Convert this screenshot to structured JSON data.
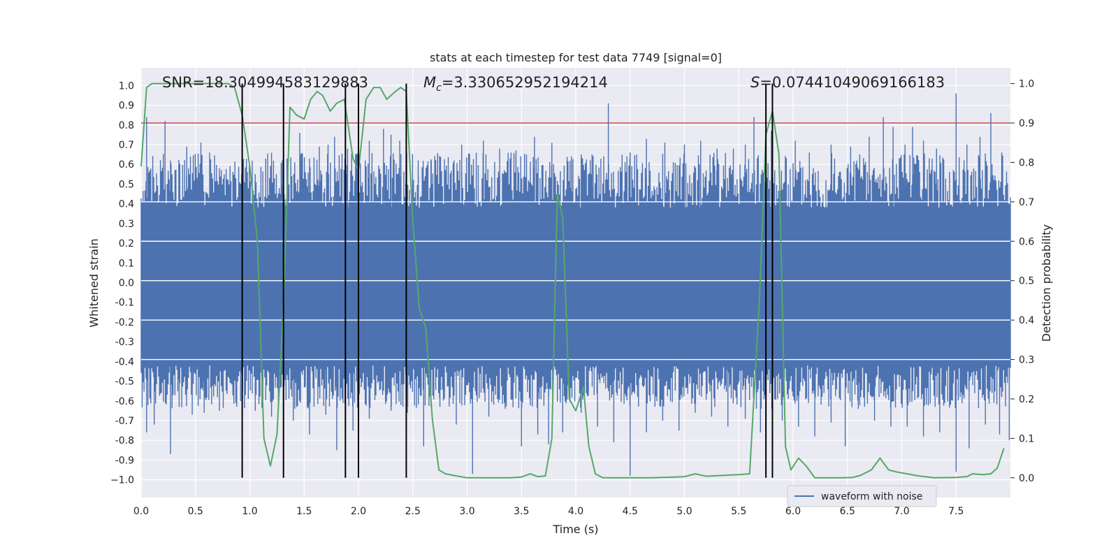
{
  "chart_data": {
    "type": "line",
    "title": "stats at each timestep for test data 7749 [signal=0]",
    "xlabel": "Time (s)",
    "ylabel": "Whitened strain",
    "y2label": "Detection probability",
    "xlim": [
      0.0,
      8.0
    ],
    "ylim": [
      -1.09,
      1.09
    ],
    "y2lim": [
      -0.05,
      1.04
    ],
    "xticks": [
      "0.0",
      "0.5",
      "1.0",
      "1.5",
      "2.0",
      "2.5",
      "3.0",
      "3.5",
      "4.0",
      "4.5",
      "5.0",
      "5.5",
      "6.0",
      "6.5",
      "7.0",
      "7.5"
    ],
    "yticks": [
      "1.0",
      "0.9",
      "0.8",
      "0.7",
      "0.6",
      "0.5",
      "0.4",
      "0.3",
      "0.2",
      "0.1",
      "0.0",
      "-0.1",
      "-0.2",
      "-0.3",
      "-0.4",
      "-0.5",
      "-0.6",
      "-0.7",
      "-0.8",
      "-0.9",
      "−1.0"
    ],
    "y2ticks": [
      "1.0",
      "0.9",
      "0.8",
      "0.7",
      "0.6",
      "0.5",
      "0.4",
      "0.3",
      "0.2",
      "0.1",
      "0.0"
    ],
    "annotations": {
      "snr": "SNR=18.304994583129883",
      "mc_symbol": "M",
      "mc_sub": "c",
      "mc_value": "=3.330652952194214",
      "s_symbol": "S",
      "s_value": "=0.07441049069166183"
    },
    "threshold": 0.9,
    "threshold_color": "#c44e52",
    "vertical_lines": [
      0.93,
      1.31,
      1.88,
      2.0,
      2.44,
      5.75,
      5.81
    ],
    "series": [
      {
        "name": "waveform with noise",
        "color": "#4c72b0",
        "axis": "left",
        "band": [
          -0.42,
          0.38
        ],
        "spikes_up": [
          [
            0.05,
            0.84
          ],
          [
            0.22,
            0.82
          ],
          [
            0.27,
            0.62
          ],
          [
            0.42,
            0.69
          ],
          [
            0.55,
            0.71
          ],
          [
            0.63,
            0.66
          ],
          [
            0.8,
            0.52
          ],
          [
            1.05,
            0.55
          ],
          [
            1.3,
            0.62
          ],
          [
            1.46,
            0.76
          ],
          [
            1.55,
            0.63
          ],
          [
            1.64,
            0.69
          ],
          [
            1.72,
            0.7
          ],
          [
            1.78,
            0.74
          ],
          [
            1.9,
            0.68
          ],
          [
            2.1,
            0.72
          ],
          [
            2.23,
            0.78
          ],
          [
            2.3,
            0.75
          ],
          [
            2.38,
            0.72
          ],
          [
            2.55,
            0.62
          ],
          [
            2.67,
            0.62
          ],
          [
            2.8,
            0.57
          ],
          [
            2.95,
            0.7
          ],
          [
            3.15,
            0.72
          ],
          [
            3.3,
            0.68
          ],
          [
            3.45,
            0.67
          ],
          [
            3.62,
            0.74
          ],
          [
            3.78,
            0.71
          ],
          [
            3.96,
            0.64
          ],
          [
            4.05,
            0.65
          ],
          [
            4.15,
            0.65
          ],
          [
            4.3,
            0.91
          ],
          [
            4.5,
            0.66
          ],
          [
            4.65,
            0.73
          ],
          [
            4.82,
            0.71
          ],
          [
            5.0,
            0.7
          ],
          [
            5.15,
            0.72
          ],
          [
            5.3,
            0.68
          ],
          [
            5.45,
            0.68
          ],
          [
            5.56,
            0.7
          ],
          [
            5.64,
            0.84
          ],
          [
            5.8,
            0.77
          ],
          [
            6.02,
            0.72
          ],
          [
            6.15,
            0.66
          ],
          [
            6.35,
            0.7
          ],
          [
            6.53,
            0.69
          ],
          [
            6.7,
            0.74
          ],
          [
            6.83,
            0.84
          ],
          [
            6.92,
            0.79
          ],
          [
            7.03,
            0.7
          ],
          [
            7.1,
            0.79
          ],
          [
            7.2,
            0.72
          ],
          [
            7.32,
            0.68
          ],
          [
            7.5,
            0.96
          ],
          [
            7.6,
            0.7
          ],
          [
            7.72,
            0.74
          ],
          [
            7.82,
            0.86
          ],
          [
            7.92,
            0.66
          ]
        ],
        "spikes_down": [
          [
            0.05,
            -0.76
          ],
          [
            0.12,
            -0.72
          ],
          [
            0.27,
            -0.87
          ],
          [
            0.35,
            -0.63
          ],
          [
            0.47,
            -0.67
          ],
          [
            0.58,
            -0.66
          ],
          [
            0.72,
            -0.65
          ],
          [
            0.88,
            -0.63
          ],
          [
            1.05,
            -0.65
          ],
          [
            1.2,
            -0.68
          ],
          [
            1.4,
            -0.7
          ],
          [
            1.55,
            -0.77
          ],
          [
            1.7,
            -0.67
          ],
          [
            1.8,
            -0.85
          ],
          [
            1.95,
            -0.75
          ],
          [
            2.1,
            -0.69
          ],
          [
            2.3,
            -0.65
          ],
          [
            2.45,
            -0.66
          ],
          [
            2.6,
            -0.83
          ],
          [
            2.75,
            -0.63
          ],
          [
            2.9,
            -0.72
          ],
          [
            3.05,
            -0.97
          ],
          [
            3.2,
            -0.68
          ],
          [
            3.35,
            -0.64
          ],
          [
            3.5,
            -0.83
          ],
          [
            3.65,
            -0.77
          ],
          [
            3.75,
            -0.82
          ],
          [
            3.88,
            -0.76
          ],
          [
            4.05,
            -0.66
          ],
          [
            4.2,
            -0.73
          ],
          [
            4.35,
            -0.81
          ],
          [
            4.5,
            -0.98
          ],
          [
            4.65,
            -0.76
          ],
          [
            4.8,
            -0.7
          ],
          [
            4.95,
            -0.75
          ],
          [
            5.1,
            -0.66
          ],
          [
            5.25,
            -0.68
          ],
          [
            5.4,
            -0.73
          ],
          [
            5.56,
            -0.69
          ],
          [
            5.7,
            -0.76
          ],
          [
            5.9,
            -0.7
          ],
          [
            6.05,
            -0.73
          ],
          [
            6.2,
            -0.78
          ],
          [
            6.35,
            -0.71
          ],
          [
            6.48,
            -0.83
          ],
          [
            6.6,
            -0.64
          ],
          [
            6.75,
            -0.7
          ],
          [
            6.9,
            -0.73
          ],
          [
            7.05,
            -0.73
          ],
          [
            7.2,
            -0.78
          ],
          [
            7.35,
            -0.76
          ],
          [
            7.5,
            -0.96
          ],
          [
            7.62,
            -0.84
          ],
          [
            7.77,
            -0.72
          ],
          [
            7.9,
            -0.77
          ],
          [
            7.99,
            -0.8
          ]
        ]
      },
      {
        "name": "detection probability",
        "color": "#55a868",
        "axis": "right",
        "x": [
          0.0,
          0.05,
          0.1,
          0.2,
          0.3,
          0.4,
          0.5,
          0.6,
          0.7,
          0.8,
          0.86,
          0.93,
          1.0,
          1.07,
          1.13,
          1.19,
          1.25,
          1.31,
          1.37,
          1.43,
          1.5,
          1.56,
          1.62,
          1.67,
          1.74,
          1.8,
          1.87,
          1.95,
          2.0,
          2.07,
          2.14,
          2.2,
          2.26,
          2.34,
          2.39,
          2.44,
          2.5,
          2.56,
          2.62,
          2.68,
          2.74,
          2.8,
          2.9,
          3.0,
          3.2,
          3.4,
          3.5,
          3.58,
          3.65,
          3.72,
          3.78,
          3.83,
          3.88,
          3.94,
          4.0,
          4.07,
          4.12,
          4.18,
          4.25,
          4.35,
          4.5,
          4.7,
          4.9,
          5.0,
          5.1,
          5.2,
          5.35,
          5.5,
          5.6,
          5.69,
          5.75,
          5.81,
          5.87,
          5.93,
          5.98,
          6.05,
          6.12,
          6.2,
          6.3,
          6.45,
          6.55,
          6.62,
          6.72,
          6.8,
          6.88,
          6.95,
          7.05,
          7.15,
          7.3,
          7.5,
          7.6,
          7.65,
          7.75,
          7.82,
          7.88,
          7.94
        ],
        "y": [
          0.79,
          0.99,
          1.0,
          1.0,
          1.0,
          1.0,
          1.0,
          1.0,
          1.0,
          1.0,
          0.99,
          0.92,
          0.79,
          0.6,
          0.1,
          0.03,
          0.11,
          0.44,
          0.94,
          0.92,
          0.91,
          0.96,
          0.98,
          0.97,
          0.93,
          0.95,
          0.96,
          0.81,
          0.78,
          0.96,
          0.99,
          0.99,
          0.96,
          0.98,
          0.99,
          0.98,
          0.65,
          0.43,
          0.38,
          0.15,
          0.02,
          0.01,
          0.005,
          0.0,
          0.0,
          0.0,
          0.002,
          0.01,
          0.003,
          0.005,
          0.1,
          0.72,
          0.66,
          0.2,
          0.17,
          0.23,
          0.08,
          0.01,
          0.0,
          0.0,
          0.0,
          0.0,
          0.002,
          0.003,
          0.01,
          0.004,
          0.006,
          0.008,
          0.01,
          0.45,
          0.87,
          0.93,
          0.82,
          0.08,
          0.02,
          0.05,
          0.03,
          0.0,
          0.0,
          0.0,
          0.001,
          0.006,
          0.02,
          0.05,
          0.02,
          0.015,
          0.01,
          0.005,
          0.0,
          0.001,
          0.003,
          0.01,
          0.008,
          0.01,
          0.025,
          0.075
        ]
      }
    ],
    "legend": {
      "label": "waveform with noise",
      "position": "bottom-right"
    }
  }
}
